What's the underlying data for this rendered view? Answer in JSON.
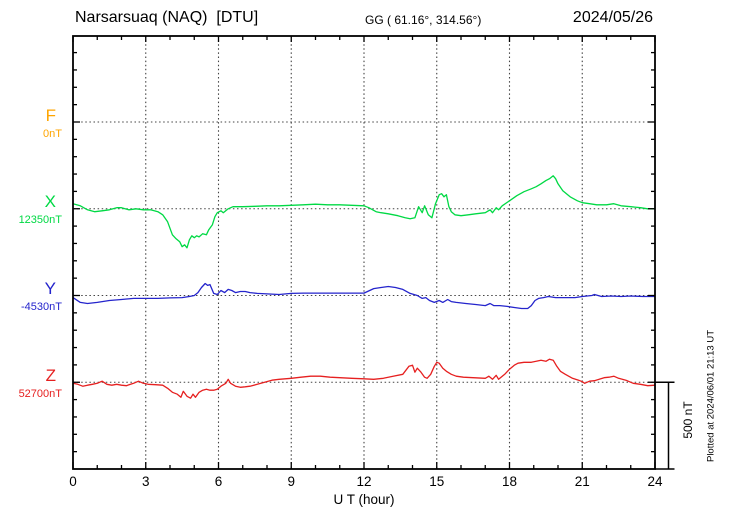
{
  "header": {
    "station": "Narsarsuaq (NAQ)  [DTU]",
    "coords": "GG ( 61.16°, 314.56°)",
    "date": "2024/05/26"
  },
  "axes": {
    "x_label": "U T (hour)",
    "x_ticks": [
      0,
      3,
      6,
      9,
      12,
      15,
      18,
      21,
      24
    ],
    "scale_bar_label": "500 nT",
    "plotted_at": "Plotted at 2024/06/01 21:13 UT"
  },
  "components": [
    {
      "id": "F",
      "label": "F",
      "baseline_label": "0nT",
      "color": "#FFA500"
    },
    {
      "id": "X",
      "label": "X",
      "baseline_label": "12350nT",
      "color": "#00D944"
    },
    {
      "id": "Y",
      "label": "Y",
      "baseline_label": "-4530nT",
      "color": "#2424CC"
    },
    {
      "id": "Z",
      "label": "Z",
      "baseline_label": "52700nT",
      "color": "#E62020"
    }
  ],
  "chart_data": {
    "type": "line",
    "title": "Narsarsuaq (NAQ) [DTU] magnetogram 2024/05/26",
    "xlabel": "U T (hour)",
    "x_range": [
      0,
      24
    ],
    "x_major_tick": 3,
    "x_minor_tick": 1,
    "y_unit": "nT",
    "y_scale_bar_nT": 500,
    "y_minor_tick_nT": 100,
    "grid": "dotted at 3-hour intervals and at each component baseline",
    "note": "points are [hour, offset_nT from baseline]; baselines spaced 500 nT apart on plot",
    "series": [
      {
        "name": "F",
        "baseline_nT": 0,
        "color": "#FFA500",
        "points": []
      },
      {
        "name": "X",
        "baseline_nT": 12350,
        "color": "#00D944",
        "points": [
          [
            0,
            29
          ],
          [
            0.3,
            17
          ],
          [
            0.6,
            -6
          ],
          [
            0.9,
            -17
          ],
          [
            1.2,
            -12
          ],
          [
            1.5,
            -6
          ],
          [
            1.8,
            6
          ],
          [
            2.0,
            6
          ],
          [
            2.3,
            -6
          ],
          [
            2.6,
            0
          ],
          [
            2.9,
            -6
          ],
          [
            3.2,
            -6
          ],
          [
            3.5,
            -17
          ],
          [
            3.7,
            -35
          ],
          [
            3.9,
            -75
          ],
          [
            4.1,
            -150
          ],
          [
            4.25,
            -173
          ],
          [
            4.4,
            -190
          ],
          [
            4.5,
            -219
          ],
          [
            4.6,
            -208
          ],
          [
            4.7,
            -225
          ],
          [
            4.8,
            -179
          ],
          [
            4.9,
            -156
          ],
          [
            5.0,
            -167
          ],
          [
            5.1,
            -156
          ],
          [
            5.2,
            -162
          ],
          [
            5.35,
            -144
          ],
          [
            5.5,
            -150
          ],
          [
            5.6,
            -121
          ],
          [
            5.75,
            -92
          ],
          [
            5.85,
            -46
          ],
          [
            5.95,
            -23
          ],
          [
            6.1,
            -12
          ],
          [
            6.2,
            -23
          ],
          [
            6.4,
            0
          ],
          [
            6.6,
            12
          ],
          [
            7.0,
            12
          ],
          [
            7.5,
            14
          ],
          [
            8.0,
            17
          ],
          [
            8.5,
            17
          ],
          [
            9.0,
            20
          ],
          [
            9.5,
            23
          ],
          [
            10.0,
            26
          ],
          [
            10.5,
            23
          ],
          [
            11.0,
            23
          ],
          [
            11.5,
            20
          ],
          [
            12.0,
            17
          ],
          [
            12.2,
            6
          ],
          [
            12.5,
            -17
          ],
          [
            12.7,
            -23
          ],
          [
            13.0,
            -29
          ],
          [
            13.4,
            -40
          ],
          [
            13.7,
            -52
          ],
          [
            13.9,
            -58
          ],
          [
            14.1,
            -52
          ],
          [
            14.25,
            12
          ],
          [
            14.4,
            -23
          ],
          [
            14.5,
            17
          ],
          [
            14.65,
            -35
          ],
          [
            14.8,
            -52
          ],
          [
            14.95,
            29
          ],
          [
            15.1,
            81
          ],
          [
            15.2,
            87
          ],
          [
            15.3,
            69
          ],
          [
            15.4,
            81
          ],
          [
            15.5,
            12
          ],
          [
            15.6,
            -17
          ],
          [
            15.75,
            -35
          ],
          [
            16.0,
            -40
          ],
          [
            16.3,
            -35
          ],
          [
            16.6,
            -29
          ],
          [
            17.0,
            -23
          ],
          [
            17.2,
            -6
          ],
          [
            17.3,
            -23
          ],
          [
            17.45,
            6
          ],
          [
            17.55,
            -6
          ],
          [
            17.7,
            17
          ],
          [
            18.0,
            46
          ],
          [
            18.3,
            75
          ],
          [
            18.6,
            98
          ],
          [
            18.9,
            115
          ],
          [
            19.1,
            127
          ],
          [
            19.3,
            144
          ],
          [
            19.5,
            162
          ],
          [
            19.65,
            173
          ],
          [
            19.8,
            190
          ],
          [
            19.9,
            173
          ],
          [
            20.0,
            144
          ],
          [
            20.2,
            104
          ],
          [
            20.5,
            69
          ],
          [
            20.8,
            46
          ],
          [
            21.0,
            35
          ],
          [
            21.3,
            29
          ],
          [
            21.6,
            23
          ],
          [
            22.0,
            23
          ],
          [
            22.3,
            29
          ],
          [
            22.6,
            17
          ],
          [
            23.0,
            12
          ],
          [
            23.4,
            6
          ],
          [
            23.7,
            0
          ],
          [
            24.0,
            0
          ]
        ]
      },
      {
        "name": "Y",
        "baseline_nT": -4530,
        "color": "#2424CC",
        "points": [
          [
            0,
            -12
          ],
          [
            0.3,
            -40
          ],
          [
            0.6,
            -46
          ],
          [
            1.0,
            -40
          ],
          [
            1.5,
            -29
          ],
          [
            2.0,
            -23
          ],
          [
            2.5,
            -17
          ],
          [
            3.0,
            -17
          ],
          [
            3.5,
            -17
          ],
          [
            4.0,
            -14
          ],
          [
            4.5,
            -12
          ],
          [
            4.8,
            -6
          ],
          [
            5.0,
            0
          ],
          [
            5.15,
            17
          ],
          [
            5.3,
            46
          ],
          [
            5.45,
            69
          ],
          [
            5.55,
            58
          ],
          [
            5.65,
            63
          ],
          [
            5.8,
            12
          ],
          [
            5.95,
            6
          ],
          [
            6.1,
            29
          ],
          [
            6.25,
            17
          ],
          [
            6.4,
            35
          ],
          [
            6.55,
            29
          ],
          [
            6.7,
            17
          ],
          [
            6.9,
            23
          ],
          [
            7.1,
            23
          ],
          [
            7.3,
            17
          ],
          [
            7.6,
            12
          ],
          [
            8.0,
            9
          ],
          [
            8.5,
            6
          ],
          [
            9.0,
            12
          ],
          [
            9.5,
            14
          ],
          [
            10.0,
            14
          ],
          [
            10.5,
            14
          ],
          [
            11.0,
            14
          ],
          [
            11.5,
            14
          ],
          [
            12.0,
            14
          ],
          [
            12.4,
            40
          ],
          [
            12.7,
            46
          ],
          [
            13.0,
            52
          ],
          [
            13.3,
            46
          ],
          [
            13.6,
            35
          ],
          [
            13.9,
            12
          ],
          [
            14.2,
            0
          ],
          [
            14.4,
            -17
          ],
          [
            14.55,
            -12
          ],
          [
            14.7,
            -29
          ],
          [
            14.9,
            -40
          ],
          [
            15.1,
            -29
          ],
          [
            15.25,
            -40
          ],
          [
            15.45,
            -23
          ],
          [
            15.6,
            -35
          ],
          [
            15.8,
            -40
          ],
          [
            16.2,
            -46
          ],
          [
            16.6,
            -52
          ],
          [
            17.0,
            -58
          ],
          [
            17.2,
            -46
          ],
          [
            17.35,
            -58
          ],
          [
            17.6,
            -58
          ],
          [
            17.9,
            -63
          ],
          [
            18.2,
            -69
          ],
          [
            18.5,
            -75
          ],
          [
            18.75,
            -75
          ],
          [
            18.9,
            -58
          ],
          [
            19.05,
            -29
          ],
          [
            19.2,
            -17
          ],
          [
            19.4,
            -12
          ],
          [
            19.6,
            -6
          ],
          [
            19.9,
            -12
          ],
          [
            20.3,
            -12
          ],
          [
            20.7,
            -12
          ],
          [
            21.0,
            -6
          ],
          [
            21.4,
            0
          ],
          [
            21.5,
            6
          ],
          [
            21.8,
            -6
          ],
          [
            22.2,
            -3
          ],
          [
            22.6,
            -6
          ],
          [
            23.0,
            -3
          ],
          [
            23.5,
            -6
          ],
          [
            24.0,
            -6
          ]
        ]
      },
      {
        "name": "Z",
        "baseline_nT": 52700,
        "color": "#E62020",
        "points": [
          [
            0,
            -6
          ],
          [
            0.2,
            -12
          ],
          [
            0.4,
            -23
          ],
          [
            0.6,
            -17
          ],
          [
            0.8,
            -12
          ],
          [
            1.0,
            -6
          ],
          [
            1.2,
            6
          ],
          [
            1.4,
            -12
          ],
          [
            1.6,
            -17
          ],
          [
            1.8,
            -12
          ],
          [
            2.0,
            -17
          ],
          [
            2.2,
            -20
          ],
          [
            2.5,
            -6
          ],
          [
            2.7,
            6
          ],
          [
            2.9,
            -6
          ],
          [
            3.1,
            -12
          ],
          [
            3.4,
            -14
          ],
          [
            3.7,
            -17
          ],
          [
            3.9,
            -35
          ],
          [
            4.1,
            -58
          ],
          [
            4.3,
            -69
          ],
          [
            4.45,
            -87
          ],
          [
            4.55,
            -52
          ],
          [
            4.7,
            -81
          ],
          [
            4.85,
            -92
          ],
          [
            4.95,
            -69
          ],
          [
            5.05,
            -87
          ],
          [
            5.2,
            -58
          ],
          [
            5.35,
            -46
          ],
          [
            5.5,
            -40
          ],
          [
            5.65,
            -46
          ],
          [
            5.8,
            -46
          ],
          [
            5.95,
            -40
          ],
          [
            6.1,
            -23
          ],
          [
            6.3,
            -6
          ],
          [
            6.4,
            17
          ],
          [
            6.5,
            -6
          ],
          [
            6.7,
            -23
          ],
          [
            6.9,
            -29
          ],
          [
            7.1,
            -26
          ],
          [
            7.3,
            -23
          ],
          [
            7.6,
            -12
          ],
          [
            7.9,
            0
          ],
          [
            8.2,
            12
          ],
          [
            8.5,
            17
          ],
          [
            9.0,
            23
          ],
          [
            9.4,
            29
          ],
          [
            9.8,
            35
          ],
          [
            10.2,
            35
          ],
          [
            10.6,
            29
          ],
          [
            11.0,
            26
          ],
          [
            11.5,
            23
          ],
          [
            12.0,
            20
          ],
          [
            12.4,
            17
          ],
          [
            12.8,
            23
          ],
          [
            13.2,
            35
          ],
          [
            13.6,
            46
          ],
          [
            13.85,
            92
          ],
          [
            14.0,
            98
          ],
          [
            14.1,
            58
          ],
          [
            14.2,
            81
          ],
          [
            14.35,
            58
          ],
          [
            14.5,
            29
          ],
          [
            14.6,
            23
          ],
          [
            14.75,
            46
          ],
          [
            14.9,
            92
          ],
          [
            15.0,
            115
          ],
          [
            15.1,
            110
          ],
          [
            15.25,
            81
          ],
          [
            15.4,
            63
          ],
          [
            15.6,
            46
          ],
          [
            15.8,
            35
          ],
          [
            16.1,
            29
          ],
          [
            16.5,
            26
          ],
          [
            17.0,
            23
          ],
          [
            17.15,
            35
          ],
          [
            17.3,
            17
          ],
          [
            17.45,
            40
          ],
          [
            17.55,
            17
          ],
          [
            17.8,
            46
          ],
          [
            18.0,
            75
          ],
          [
            18.2,
            98
          ],
          [
            18.35,
            110
          ],
          [
            18.6,
            115
          ],
          [
            18.9,
            115
          ],
          [
            19.1,
            121
          ],
          [
            19.3,
            127
          ],
          [
            19.5,
            121
          ],
          [
            19.65,
            133
          ],
          [
            19.8,
            127
          ],
          [
            19.95,
            92
          ],
          [
            20.1,
            63
          ],
          [
            20.3,
            46
          ],
          [
            20.6,
            23
          ],
          [
            20.85,
            12
          ],
          [
            21.0,
            3
          ],
          [
            21.1,
            -6
          ],
          [
            21.3,
            6
          ],
          [
            21.5,
            9
          ],
          [
            21.7,
            17
          ],
          [
            21.9,
            26
          ],
          [
            22.1,
            29
          ],
          [
            22.3,
            35
          ],
          [
            22.5,
            23
          ],
          [
            22.8,
            12
          ],
          [
            23.1,
            -6
          ],
          [
            23.4,
            -12
          ],
          [
            23.7,
            -20
          ],
          [
            24.0,
            -17
          ]
        ]
      }
    ]
  }
}
